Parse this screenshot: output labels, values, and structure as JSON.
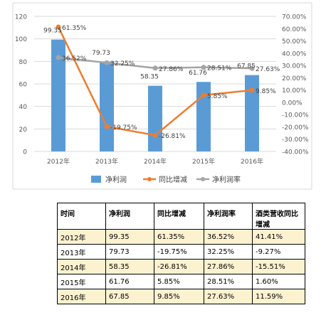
{
  "chart_data": {
    "type": "bar+line",
    "categories": [
      "2012年",
      "2013年",
      "2014年",
      "2015年",
      "2016年"
    ],
    "series": [
      {
        "name": "净利润",
        "type": "bar",
        "axis": "left",
        "color": "#5b9bd5",
        "values": [
          99.35,
          79.73,
          58.35,
          61.76,
          67.85
        ],
        "labels": [
          "99.35",
          "79.73",
          "58.35",
          "61.76",
          "67.85"
        ]
      },
      {
        "name": "同比增减",
        "type": "line",
        "axis": "right",
        "color": "#ed7d31",
        "values": [
          61.35,
          -19.75,
          -26.81,
          5.85,
          9.85
        ],
        "labels": [
          "61.35%",
          "-19.75%",
          "-26.81%",
          "5.85%",
          "9.85%"
        ]
      },
      {
        "name": "净利润率",
        "type": "line",
        "axis": "right",
        "color": "#a5a5a5",
        "values": [
          36.52,
          32.25,
          27.86,
          28.51,
          27.63
        ],
        "labels": [
          "36.52%",
          "32.25%",
          "27.86%",
          "28.51%",
          "27.63%"
        ]
      }
    ],
    "left_axis": {
      "ylim": [
        0,
        120
      ],
      "ticks": [
        "0",
        "20",
        "40",
        "60",
        "80",
        "100",
        "120"
      ]
    },
    "right_axis": {
      "ylim": [
        -40,
        70
      ],
      "ticks": [
        "-40.00%",
        "-30.00%",
        "-20.00%",
        "-10.00%",
        "0.00%",
        "10.00%",
        "20.00%",
        "30.00%",
        "40.00%",
        "50.00%",
        "60.00%",
        "70.00%"
      ]
    },
    "legend_position": "bottom",
    "grid": true
  },
  "table": {
    "headers": [
      "时间",
      "净利润",
      "同比增减",
      "净利润率",
      "酒类营收同比增减"
    ],
    "rows": [
      [
        "2012年",
        "99.35",
        "61.35%",
        "36.52%",
        "41.41%"
      ],
      [
        "2013年",
        "79.73",
        "-19.75%",
        "32.25%",
        "-9.27%"
      ],
      [
        "2014年",
        "58.35",
        "-26.81%",
        "27.86%",
        "-15.51%"
      ],
      [
        "2015年",
        "61.76",
        "5.85%",
        "28.51%",
        "1.60%"
      ],
      [
        "2016年",
        "67.85",
        "9.85%",
        "27.63%",
        "11.59%"
      ]
    ]
  }
}
